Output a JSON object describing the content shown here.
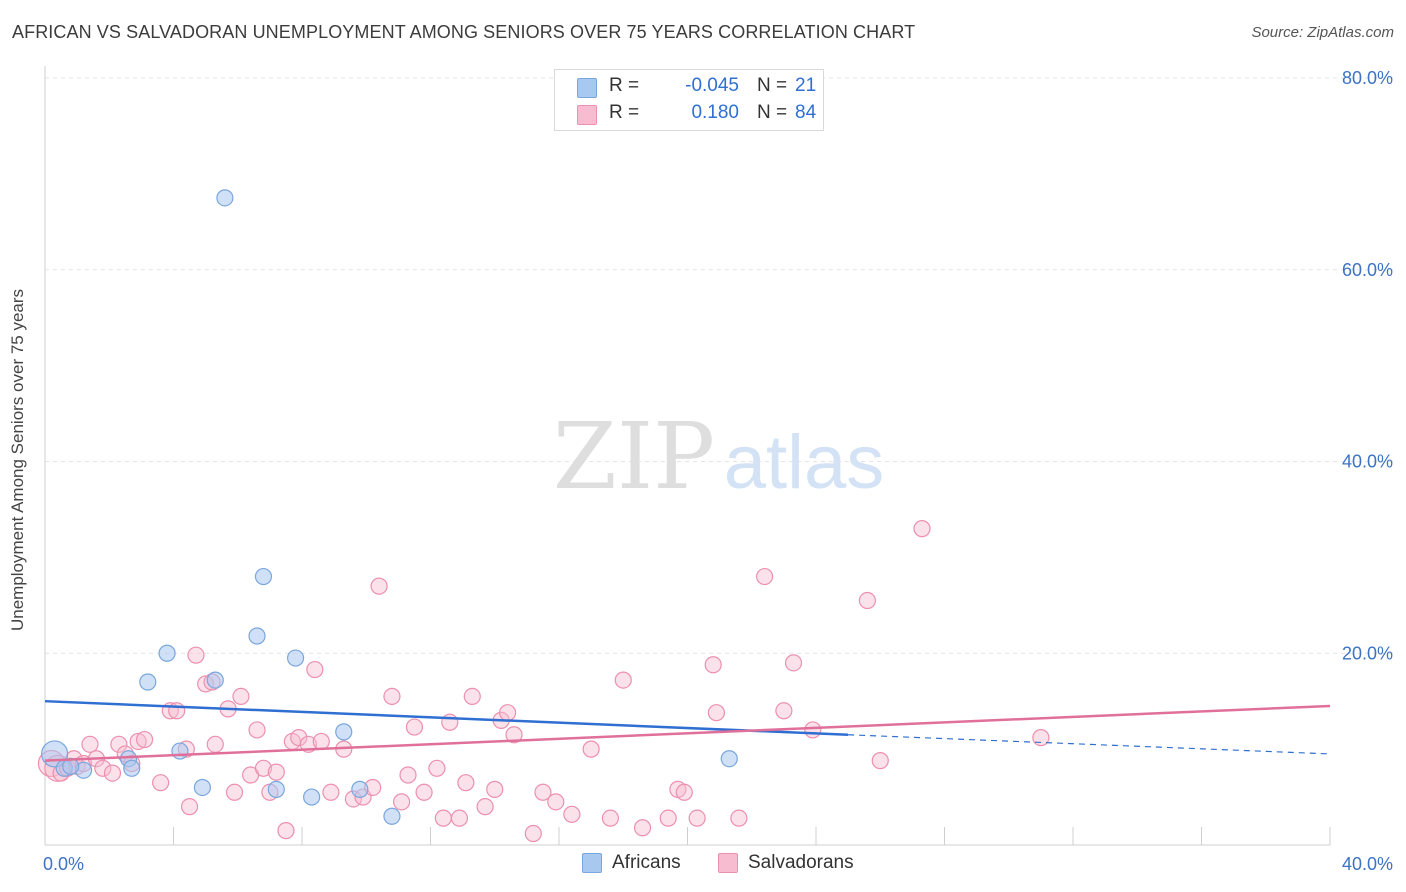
{
  "header": {
    "title": "AFRICAN VS SALVADORAN UNEMPLOYMENT AMONG SENIORS OVER 75 YEARS CORRELATION CHART",
    "source": "Source: ZipAtlas.com"
  },
  "watermark": {
    "zip": "ZIP",
    "atlas": "atlas"
  },
  "legend": {
    "rows": [
      {
        "r_label": "R =",
        "r_value": "-0.045",
        "n_label": "N =",
        "n_value": "21",
        "color": "#a9c8f0",
        "border": "#7aa6de"
      },
      {
        "r_label": "R =",
        "r_value": "0.180",
        "n_label": "N =",
        "n_value": "84",
        "color": "#f7bcd0",
        "border": "#ec90ad"
      }
    ]
  },
  "bottom_legend": [
    {
      "label": "Africans",
      "color": "#a9c8f0",
      "border": "#7aa6de"
    },
    {
      "label": "Salvadorans",
      "color": "#f7bcd0",
      "border": "#ec90ad"
    }
  ],
  "chart_data": {
    "type": "scatter",
    "title": "AFRICAN VS SALVADORAN UNEMPLOYMENT AMONG SENIORS OVER 75 YEARS CORRELATION CHART",
    "xlabel": "",
    "ylabel": "Unemployment Among Seniors over 75 years",
    "xlim": [
      0,
      40
    ],
    "ylim": [
      0,
      80
    ],
    "x_ticks": [
      0,
      4,
      8,
      12,
      16,
      20,
      24,
      28,
      32,
      36,
      40
    ],
    "x_tick_labels": [
      {
        "x": 0,
        "label": "0.0%"
      },
      {
        "x": 40,
        "label": "40.0%"
      }
    ],
    "y_ticks": [
      {
        "y": 20,
        "label": "20.0%"
      },
      {
        "y": 40,
        "label": "40.0%"
      },
      {
        "y": 60,
        "label": "60.0%"
      },
      {
        "y": 80,
        "label": "80.0%"
      }
    ],
    "grid": "horizontal dashed",
    "colors": {
      "africans": "#7aa6de",
      "africans_line": "#2f6fd1",
      "salvadorans": "#ec90ad",
      "salvadorans_line": "#e0709a",
      "tick_label": "#3d72c4"
    },
    "series": [
      {
        "name": "Africans",
        "points": [
          [
            0.3,
            9.5
          ],
          [
            0.6,
            8.0
          ],
          [
            1.2,
            7.8
          ],
          [
            2.6,
            9.0
          ],
          [
            2.7,
            8.0
          ],
          [
            3.2,
            17.0
          ],
          [
            3.8,
            20.0
          ],
          [
            4.2,
            9.8
          ],
          [
            4.9,
            6.0
          ],
          [
            5.3,
            17.2
          ],
          [
            5.6,
            67.5
          ],
          [
            6.6,
            21.8
          ],
          [
            6.8,
            28.0
          ],
          [
            7.2,
            5.8
          ],
          [
            7.8,
            19.5
          ],
          [
            8.3,
            5.0
          ],
          [
            9.3,
            11.8
          ],
          [
            9.8,
            5.8
          ],
          [
            10.8,
            3.0
          ],
          [
            21.3,
            9.0
          ],
          [
            0.8,
            8.2
          ]
        ],
        "trend": {
          "x": [
            0,
            25
          ],
          "y": [
            15.0,
            11.5
          ],
          "dashed_to": [
            40,
            9.5
          ]
        }
      },
      {
        "name": "Salvadorans",
        "points": [
          [
            0.2,
            8.5
          ],
          [
            0.4,
            8.0
          ],
          [
            0.5,
            7.5
          ],
          [
            0.7,
            8.0
          ],
          [
            0.9,
            9.0
          ],
          [
            1.0,
            8.2
          ],
          [
            1.2,
            8.5
          ],
          [
            1.4,
            10.5
          ],
          [
            1.6,
            9.0
          ],
          [
            1.8,
            8.0
          ],
          [
            2.1,
            7.5
          ],
          [
            2.3,
            10.5
          ],
          [
            2.5,
            9.5
          ],
          [
            2.7,
            8.5
          ],
          [
            2.9,
            10.8
          ],
          [
            3.1,
            11.0
          ],
          [
            3.6,
            6.5
          ],
          [
            3.9,
            14.0
          ],
          [
            4.1,
            14.0
          ],
          [
            4.4,
            10.0
          ],
          [
            4.5,
            4.0
          ],
          [
            4.7,
            19.8
          ],
          [
            5.0,
            16.8
          ],
          [
            5.2,
            17.0
          ],
          [
            5.3,
            10.5
          ],
          [
            5.7,
            14.2
          ],
          [
            5.9,
            5.5
          ],
          [
            6.1,
            15.5
          ],
          [
            6.4,
            7.3
          ],
          [
            6.6,
            12.0
          ],
          [
            6.8,
            8.0
          ],
          [
            7.0,
            5.5
          ],
          [
            7.2,
            7.6
          ],
          [
            7.5,
            1.5
          ],
          [
            7.7,
            10.8
          ],
          [
            7.9,
            11.2
          ],
          [
            8.2,
            10.5
          ],
          [
            8.4,
            18.3
          ],
          [
            8.6,
            10.8
          ],
          [
            8.9,
            5.5
          ],
          [
            9.3,
            10.0
          ],
          [
            9.6,
            4.8
          ],
          [
            9.9,
            5.0
          ],
          [
            10.2,
            6.0
          ],
          [
            10.4,
            27.0
          ],
          [
            10.8,
            15.5
          ],
          [
            11.1,
            4.5
          ],
          [
            11.3,
            7.3
          ],
          [
            11.5,
            12.3
          ],
          [
            11.8,
            5.5
          ],
          [
            12.2,
            8.0
          ],
          [
            12.4,
            2.8
          ],
          [
            12.6,
            12.8
          ],
          [
            12.9,
            2.8
          ],
          [
            13.1,
            6.5
          ],
          [
            13.3,
            15.5
          ],
          [
            13.7,
            4.0
          ],
          [
            14.0,
            5.8
          ],
          [
            14.2,
            13.0
          ],
          [
            14.4,
            13.8
          ],
          [
            14.6,
            11.5
          ],
          [
            15.2,
            1.2
          ],
          [
            15.5,
            5.5
          ],
          [
            15.9,
            4.5
          ],
          [
            16.4,
            3.2
          ],
          [
            17.0,
            10.0
          ],
          [
            17.6,
            2.8
          ],
          [
            18.0,
            17.2
          ],
          [
            18.6,
            1.8
          ],
          [
            19.4,
            2.8
          ],
          [
            19.7,
            5.8
          ],
          [
            19.9,
            5.5
          ],
          [
            20.3,
            2.8
          ],
          [
            20.8,
            18.8
          ],
          [
            20.9,
            13.8
          ],
          [
            21.6,
            2.8
          ],
          [
            22.4,
            28.0
          ],
          [
            23.0,
            14.0
          ],
          [
            23.3,
            19.0
          ],
          [
            23.9,
            12.0
          ],
          [
            25.6,
            25.5
          ],
          [
            26.0,
            8.8
          ],
          [
            27.3,
            33.0
          ],
          [
            31.0,
            11.2
          ]
        ],
        "trend": {
          "x": [
            0,
            40
          ],
          "y": [
            8.8,
            14.5
          ]
        }
      }
    ]
  }
}
